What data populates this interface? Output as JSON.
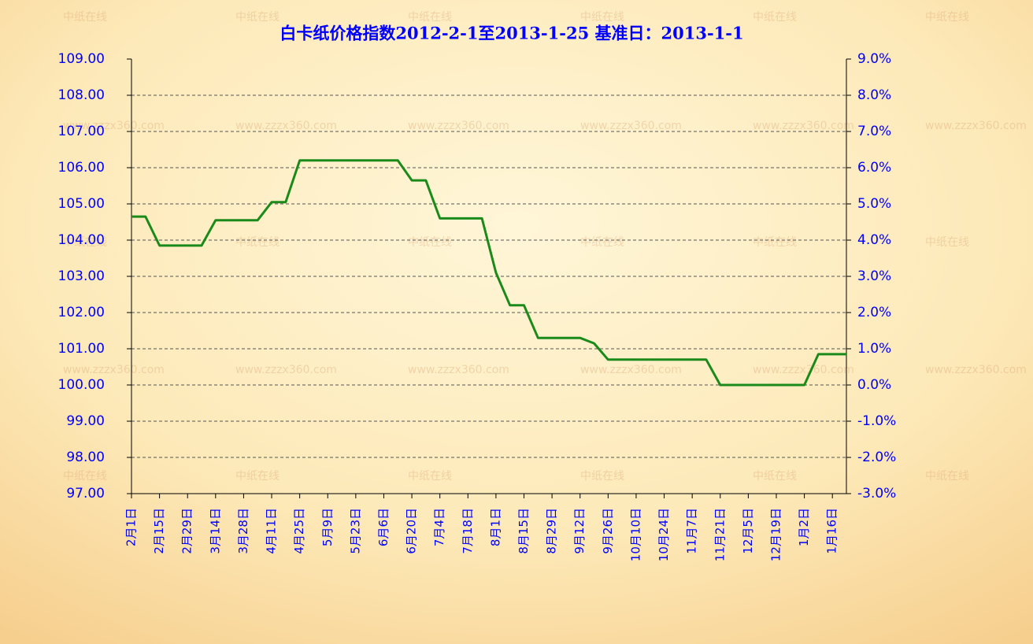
{
  "chart_data": {
    "type": "line",
    "title": "白卡纸价格指数2012-2-1至2013-1-25 基准日：2013-1-1",
    "watermarks": [
      "中纸在线",
      "www.zzzx360.com"
    ],
    "categories": [
      "2月1日",
      null,
      "2月15日",
      null,
      "2月29日",
      null,
      "3月14日",
      null,
      "3月28日",
      null,
      "4月11日",
      null,
      "4月25日",
      null,
      "5月9日",
      null,
      "5月23日",
      null,
      "6月6日",
      null,
      "6月20日",
      null,
      "7月4日",
      null,
      "7月18日",
      null,
      "8月1日",
      null,
      "8月15日",
      null,
      "8月29日",
      null,
      "9月12日",
      null,
      "9月26日",
      null,
      "10月10日",
      null,
      "10月24日",
      null,
      "11月7日",
      null,
      "11月21日",
      null,
      "12月5日",
      null,
      "12月19日",
      null,
      "1月2日",
      null,
      "1月16日",
      null
    ],
    "series": [
      {
        "color": "#1a8a1a",
        "values": [
          104.65,
          104.65,
          103.85,
          103.85,
          103.85,
          103.85,
          104.55,
          104.55,
          104.55,
          104.55,
          105.05,
          105.05,
          106.2,
          106.2,
          106.2,
          106.2,
          106.2,
          106.2,
          106.2,
          106.2,
          105.65,
          105.65,
          104.6,
          104.6,
          104.6,
          104.6,
          103.1,
          102.2,
          102.2,
          101.3,
          101.3,
          101.3,
          101.3,
          101.15,
          100.7,
          100.7,
          100.7,
          100.7,
          100.7,
          100.7,
          100.7,
          100.7,
          100.0,
          100.0,
          100.0,
          100.0,
          100.0,
          100.0,
          100.0,
          100.85,
          100.85,
          100.85
        ]
      }
    ],
    "ylim": [
      97,
      109
    ],
    "yticks": [
      {
        "value": 97,
        "label": "97.00"
      },
      {
        "value": 98,
        "label": "98.00"
      },
      {
        "value": 99,
        "label": "99.00"
      },
      {
        "value": 100,
        "label": "100.00"
      },
      {
        "value": 101,
        "label": "101.00"
      },
      {
        "value": 102,
        "label": "102.00"
      },
      {
        "value": 103,
        "label": "103.00"
      },
      {
        "value": 104,
        "label": "104.00"
      },
      {
        "value": 105,
        "label": "105.00"
      },
      {
        "value": 106,
        "label": "106.00"
      },
      {
        "value": 107,
        "label": "107.00"
      },
      {
        "value": 108,
        "label": "108.00"
      },
      {
        "value": 109,
        "label": "109.00"
      }
    ],
    "y2lim": [
      -3,
      9
    ],
    "y2ticks": [
      {
        "value": -3,
        "label": "-3.0%"
      },
      {
        "value": -2,
        "label": "-2.0%"
      },
      {
        "value": -1,
        "label": "-1.0%"
      },
      {
        "value": 0,
        "label": "0.0%"
      },
      {
        "value": 1,
        "label": "1.0%"
      },
      {
        "value": 2,
        "label": "2.0%"
      },
      {
        "value": 3,
        "label": "3.0%"
      },
      {
        "value": 4,
        "label": "4.0%"
      },
      {
        "value": 5,
        "label": "5.0%"
      },
      {
        "value": 6,
        "label": "6.0%"
      },
      {
        "value": 7,
        "label": "7.0%"
      },
      {
        "value": 8,
        "label": "8.0%"
      },
      {
        "value": 9,
        "label": "9.0%"
      }
    ],
    "grid": true
  }
}
